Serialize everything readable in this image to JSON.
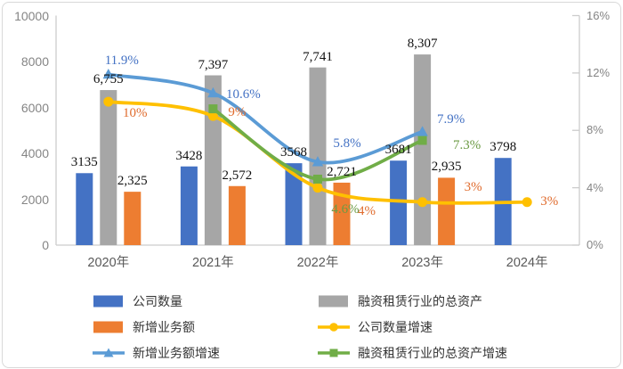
{
  "chart_data": {
    "type": "bar-line-combo",
    "title": "",
    "categories": [
      "2020年",
      "2021年",
      "2022年",
      "2023年",
      "2024年"
    ],
    "left_axis": {
      "min": 0,
      "max": 10000,
      "step": 2000,
      "ticks": [
        "0",
        "2000",
        "4000",
        "6000",
        "8000",
        "10000"
      ]
    },
    "right_axis": {
      "min": 0,
      "max": 16,
      "step": 4,
      "ticks": [
        "0%",
        "4%",
        "8%",
        "12%",
        "16%"
      ]
    },
    "grid": false,
    "legend_position": "bottom",
    "bar_series": [
      {
        "name": "公司数量",
        "color": "#4472C4",
        "values": [
          3135,
          3428,
          3568,
          3681,
          3798
        ],
        "labels": [
          "3135",
          "3428",
          "3568",
          "3681",
          "3798"
        ]
      },
      {
        "name": "融资租赁行业的总资产",
        "color": "#A6A6A6",
        "values": [
          6755,
          7397,
          7741,
          8307,
          null
        ],
        "labels": [
          "6,755",
          "7,397",
          "7,741",
          "8,307",
          null
        ]
      },
      {
        "name": "新增业务额",
        "color": "#ED7D31",
        "values": [
          2325,
          2572,
          2721,
          2935,
          null
        ],
        "labels": [
          "2,325",
          "2,572",
          "2,721",
          "2,935",
          null
        ]
      }
    ],
    "line_series": [
      {
        "name": "公司数量增速",
        "color": "#FFC000",
        "marker": "circle",
        "label_color": "#E06C2E",
        "values": [
          10,
          9,
          4,
          3,
          3
        ],
        "labels": [
          "10%",
          "9%",
          "4%",
          "3%",
          "3%"
        ]
      },
      {
        "name": "融资租赁行业的总资产增速",
        "color": "#70AD47",
        "marker": "square",
        "label_color": "#6B9A43",
        "values": [
          null,
          9.5,
          4.6,
          7.3,
          null
        ],
        "labels": [
          null,
          "9.5%",
          "4.6%",
          "7.3%",
          null
        ]
      },
      {
        "name": "新增业务额增速",
        "color": "#5B9BD5",
        "marker": "triangle",
        "label_color": "#4472C4",
        "values": [
          11.9,
          10.6,
          5.8,
          7.9,
          null
        ],
        "labels": [
          "11.9%",
          "10.6%",
          "5.8%",
          "7.9%",
          null
        ]
      }
    ],
    "legend": [
      {
        "label": "公司数量",
        "swatch": "bar",
        "color": "#4472C4"
      },
      {
        "label": "融资租赁行业的总资产",
        "swatch": "bar",
        "color": "#A6A6A6"
      },
      {
        "label": "新增业务额",
        "swatch": "bar",
        "color": "#ED7D31"
      },
      {
        "label": "公司数量增速",
        "swatch": "line-circle",
        "color": "#FFC000"
      },
      {
        "label": "新增业务额增速",
        "swatch": "line-triangle",
        "color": "#5B9BD5"
      },
      {
        "label": "融资租赁行业的总资产增速",
        "swatch": "line-square",
        "color": "#70AD47"
      }
    ],
    "colors": {
      "axis_line": "#cccccc",
      "axis_text": "#858585",
      "bar_label_text": "#111111"
    }
  }
}
